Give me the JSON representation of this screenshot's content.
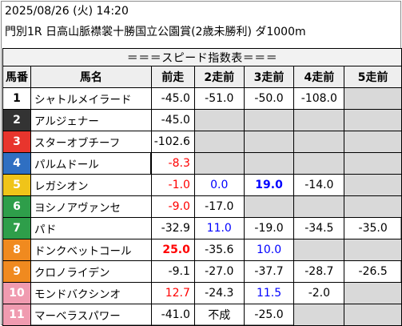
{
  "header": {
    "line1": "2025/08/26 (火) 14:20",
    "line2": "門別1R 日高山脈襟裳十勝国立公園賞(2歳未勝利) ダ1000m"
  },
  "table": {
    "title": "＝＝＝スピード指数表＝＝＝",
    "columns": [
      "馬番",
      "馬名",
      "前走",
      "2走前",
      "3走前",
      "4走前",
      "5走前"
    ],
    "rows": [
      {
        "num": "1",
        "name": "シャトルメイラード",
        "v": [
          "-45.0",
          "-51.0",
          "-50.0",
          "-108.0",
          ""
        ]
      },
      {
        "num": "2",
        "name": "アルジェナー",
        "v": [
          "-45.0",
          "",
          "",
          "",
          ""
        ]
      },
      {
        "num": "3",
        "name": "スターオブチーフ",
        "v": [
          "-102.6",
          "",
          "",
          "",
          ""
        ]
      },
      {
        "num": "4",
        "name": "パルムドール",
        "v": [
          "-8.3",
          "",
          "",
          "",
          ""
        ]
      },
      {
        "num": "5",
        "name": "レガシオン",
        "v": [
          "-1.0",
          "0.0",
          "19.0",
          "-14.0",
          ""
        ]
      },
      {
        "num": "6",
        "name": "ヨシノアヴァンセ",
        "v": [
          "-9.0",
          "-17.0",
          "",
          "",
          ""
        ]
      },
      {
        "num": "7",
        "name": "パド",
        "v": [
          "-32.9",
          "11.0",
          "-19.0",
          "-34.5",
          "-35.0"
        ]
      },
      {
        "num": "8",
        "name": "ドンクベットコール",
        "v": [
          "25.0",
          "-35.6",
          "10.0",
          "",
          ""
        ]
      },
      {
        "num": "9",
        "name": "クロノライデン",
        "v": [
          "-9.1",
          "-27.0",
          "-37.7",
          "-28.7",
          "-26.5"
        ]
      },
      {
        "num": "10",
        "name": "モンドバクシンオ",
        "v": [
          "12.7",
          "-24.3",
          "11.5",
          "-2.0",
          ""
        ]
      },
      {
        "num": "11",
        "name": "マーベラスパワー",
        "v": [
          "-41.0",
          "不成",
          "-25.0",
          "",
          ""
        ]
      }
    ]
  },
  "colors": {
    "waku": [
      "#ffffff",
      "#333333",
      "#e8352d",
      "#2f6fc2",
      "#f0c419",
      "#2e9e4a",
      "#f08a1f",
      "#f09bb0"
    ],
    "value_red": "#ff0000",
    "value_blue": "#0000ff",
    "empty_cell": "#d9d9d9"
  }
}
